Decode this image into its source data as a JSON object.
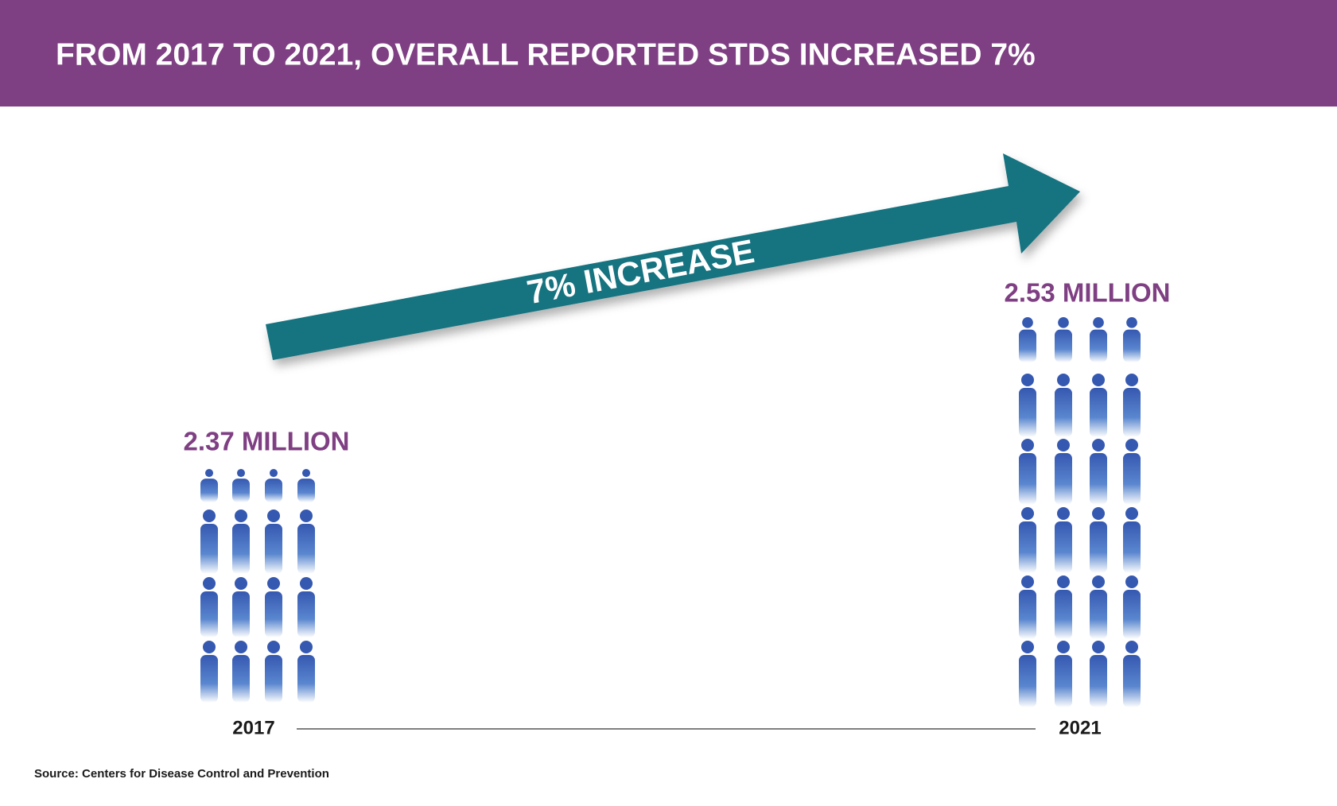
{
  "header": {
    "title": "FROM 2017 TO 2021, OVERALL REPORTED STDS INCREASED 7%"
  },
  "arrow": {
    "label": "7% INCREASE"
  },
  "start": {
    "year": "2017",
    "total": "2.37 MILLION"
  },
  "end": {
    "year": "2021",
    "total": "2.53 MILLION"
  },
  "footer": {
    "source": "Source: Centers for Disease Control and Prevention"
  }
}
